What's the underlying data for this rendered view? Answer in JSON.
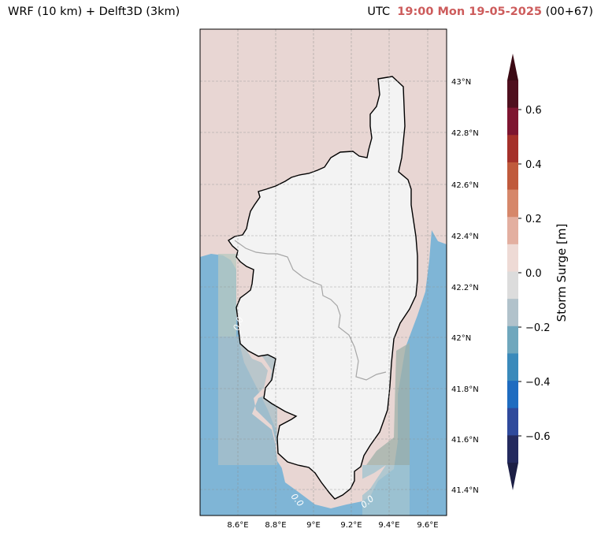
{
  "header": {
    "left_title": "WRF (10 km) + Delft3D (3km)",
    "utc_label": "UTC",
    "datetime": "19:00 Mon 19-05-2025",
    "lead": "(00+67)"
  },
  "map": {
    "lon_ticks": [
      "8.6°E",
      "8.8°E",
      "9°E",
      "9.2°E",
      "9.4°E",
      "9.6°E"
    ],
    "lat_ticks": [
      "43°N",
      "42.8°N",
      "42.6°N",
      "42.4°N",
      "42.2°N",
      "42°N",
      "41.8°N",
      "41.6°N",
      "41.4°N"
    ],
    "extent": {
      "lon_min": 8.4,
      "lon_max": 9.7,
      "lat_min": 41.3,
      "lat_max": 43.2
    },
    "contour_labels": [
      "0.0",
      "0.0",
      "0.0"
    ],
    "colors": {
      "sea_surge_positive": "#e8d6d3",
      "sea_surge_negative": "#7fb5d6",
      "land": "#f3f3f3",
      "coastline": "#000000",
      "grid": "#999999"
    }
  },
  "colorbar": {
    "label": "Storm Surge [m]",
    "tick_labels": [
      "0.6",
      "0.4",
      "0.2",
      "0.0",
      "−0.2",
      "−0.4",
      "−0.6"
    ],
    "colors": [
      "#4f0f1e",
      "#7e1530",
      "#a5302a",
      "#c05a3c",
      "#d6876a",
      "#e3afa0",
      "#eedad5",
      "#dcdcdc",
      "#b1c2cb",
      "#6fa7bd",
      "#3a8abb",
      "#1f6cc0",
      "#2f4a9c",
      "#242a5f"
    ],
    "extend_max_color": "#3b0a14",
    "extend_min_color": "#1c1f45"
  }
}
